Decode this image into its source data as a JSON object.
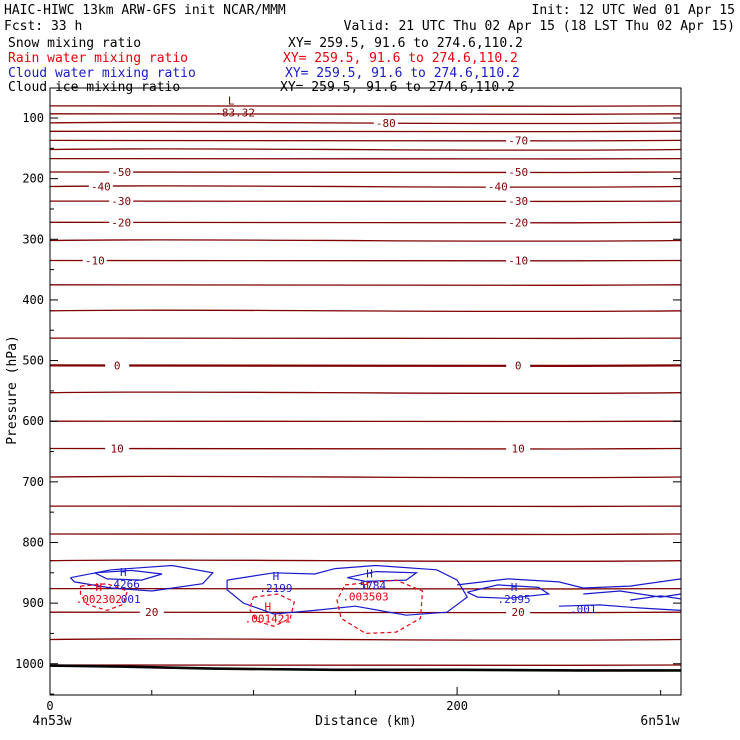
{
  "header": {
    "left_line1": "HAIC-HIWC 13km ARW-GFS init    NCAR/MMM",
    "left_line2": "Fcst:    33 h",
    "right_line1": "Init: 12 UTC Wed 01 Apr 15",
    "right_line2": "Valid: 21 UTC Thu 02 Apr 15 (18 LST Thu 02 Apr 15)",
    "fields": [
      {
        "name": "Snow mixing ratio",
        "xy": "XY= 259.5, 91.6 to 274.6,110.2",
        "color": "#000000"
      },
      {
        "name": "Rain water mixing ratio",
        "xy": "XY= 259.5, 91.6 to 274.6,110.2",
        "color": "#e8000b"
      },
      {
        "name": "Cloud water mixing ratio",
        "xy": "XY= 259.5, 91.6 to 274.6,110.2",
        "color": "#1a1acc"
      },
      {
        "name": "Cloud ice mixing ratio",
        "xy": "XY= 259.5, 91.6 to 274.6,110.2",
        "color": "#000000"
      }
    ]
  },
  "chart_data": {
    "type": "line",
    "xlabel": "Distance (km)",
    "ylabel": "Pressure (hPa)",
    "xlim": [
      0,
      310
    ],
    "ylim": [
      1050,
      75
    ],
    "x_ticks": [
      0,
      200
    ],
    "x_minor_ticks": [
      50,
      100,
      150,
      250,
      300
    ],
    "y_ticks": [
      100,
      200,
      300,
      400,
      500,
      600,
      700,
      800,
      900,
      1000
    ],
    "endpoints": {
      "left": "4n53w",
      "right": "6n51w"
    },
    "colors": {
      "temperature": "#800000",
      "cloud_water": "#1a1acc",
      "rain": "#e8000b",
      "ground": "#000000"
    },
    "temperature_lines": [
      {
        "p": 80,
        "label": ""
      },
      {
        "p": 93,
        "label": ""
      },
      {
        "p": 108,
        "label": "-80"
      },
      {
        "p": 122,
        "label": ""
      },
      {
        "p": 137,
        "label": "-70"
      },
      {
        "p": 152,
        "label": ""
      },
      {
        "p": 167,
        "label": ""
      },
      {
        "p": 189,
        "label": "-50"
      },
      {
        "p": 213,
        "label": "-40"
      },
      {
        "p": 237,
        "label": "-30"
      },
      {
        "p": 272,
        "label": "-20"
      },
      {
        "p": 302,
        "label": ""
      },
      {
        "p": 335,
        "label": "-10"
      },
      {
        "p": 375,
        "label": ""
      },
      {
        "p": 418,
        "label": ""
      },
      {
        "p": 463,
        "label": ""
      },
      {
        "p": 508,
        "label": "0"
      },
      {
        "p": 553,
        "label": ""
      },
      {
        "p": 600,
        "label": ""
      },
      {
        "p": 645,
        "label": "10"
      },
      {
        "p": 692,
        "label": ""
      },
      {
        "p": 740,
        "label": ""
      },
      {
        "p": 786,
        "label": ""
      },
      {
        "p": 830,
        "label": ""
      },
      {
        "p": 876,
        "label": ""
      },
      {
        "p": 915,
        "label": "20"
      },
      {
        "p": 960,
        "label": ""
      },
      {
        "p": 1002,
        "label": ""
      }
    ],
    "label_positions": {
      "-80": [
        165
      ],
      "-70": [
        230
      ],
      "-50": [
        35,
        230
      ],
      "-40": [
        25,
        220
      ],
      "-30": [
        35,
        230
      ],
      "-20": [
        35,
        230
      ],
      "-10": [
        22,
        230
      ],
      "0": [
        33,
        230
      ],
      "10": [
        33,
        230
      ],
      "20": [
        50,
        230
      ]
    },
    "low_center": {
      "symbol": "L",
      "x": 89,
      "p": 78,
      "value": "-83.32"
    },
    "cloud_water_maxima": [
      {
        "symbol": "H",
        "x": 36,
        "p": 855,
        "value": ".4266"
      },
      {
        "symbol": "H",
        "x": 111,
        "p": 862,
        "value": ".2199"
      },
      {
        "symbol": "H",
        "x": 157,
        "p": 858,
        "value": ".5784"
      },
      {
        "symbol": "H",
        "x": 228,
        "p": 880,
        "value": ".2995"
      }
    ],
    "cloud_water_contour_labels": [
      {
        "x": 38,
        "p": 893,
        "value": ".001"
      },
      {
        "x": 262,
        "p": 910,
        "value": ".001"
      }
    ],
    "rain_maxima": [
      {
        "symbol": "H",
        "x": 24,
        "p": 880,
        "value": ".002302"
      },
      {
        "symbol": "H",
        "x": 107,
        "p": 912,
        "value": ".001421"
      },
      {
        "symbol": "H",
        "x": 155,
        "p": 876,
        "value": ".003503"
      }
    ],
    "cloud_water_contours": [
      [
        [
          10,
          858
        ],
        [
          30,
          845
        ],
        [
          60,
          838
        ],
        [
          80,
          850
        ],
        [
          75,
          868
        ],
        [
          50,
          880
        ],
        [
          30,
          875
        ],
        [
          12,
          865
        ],
        [
          10,
          858
        ]
      ],
      [
        [
          22,
          850
        ],
        [
          40,
          846
        ],
        [
          55,
          852
        ],
        [
          45,
          862
        ],
        [
          28,
          860
        ],
        [
          22,
          850
        ]
      ],
      [
        [
          87,
          862
        ],
        [
          110,
          850
        ],
        [
          130,
          852
        ],
        [
          140,
          843
        ],
        [
          160,
          838
        ],
        [
          190,
          845
        ],
        [
          200,
          862
        ],
        [
          205,
          890
        ],
        [
          195,
          915
        ],
        [
          175,
          920
        ],
        [
          150,
          905
        ],
        [
          130,
          912
        ],
        [
          110,
          918
        ],
        [
          95,
          900
        ],
        [
          87,
          878
        ],
        [
          87,
          862
        ]
      ],
      [
        [
          146,
          858
        ],
        [
          160,
          848
        ],
        [
          180,
          850
        ],
        [
          175,
          862
        ],
        [
          155,
          864
        ],
        [
          146,
          858
        ]
      ],
      [
        [
          200,
          870
        ],
        [
          225,
          860
        ],
        [
          250,
          865
        ],
        [
          262,
          875
        ],
        [
          285,
          872
        ],
        [
          310,
          860
        ]
      ],
      [
        [
          205,
          882
        ],
        [
          220,
          870
        ],
        [
          240,
          874
        ],
        [
          245,
          885
        ],
        [
          225,
          892
        ],
        [
          210,
          890
        ],
        [
          205,
          882
        ]
      ],
      [
        [
          262,
          885
        ],
        [
          280,
          880
        ],
        [
          300,
          890
        ],
        [
          310,
          885
        ]
      ],
      [
        [
          285,
          895
        ],
        [
          300,
          888
        ],
        [
          310,
          893
        ]
      ],
      [
        [
          250,
          905
        ],
        [
          270,
          903
        ],
        [
          290,
          908
        ],
        [
          310,
          912
        ]
      ]
    ],
    "rain_contours": [
      [
        [
          15,
          872
        ],
        [
          28,
          868
        ],
        [
          38,
          880
        ],
        [
          36,
          902
        ],
        [
          28,
          912
        ],
        [
          18,
          902
        ],
        [
          15,
          885
        ],
        [
          15,
          872
        ]
      ],
      [
        [
          100,
          890
        ],
        [
          112,
          885
        ],
        [
          120,
          898
        ],
        [
          118,
          925
        ],
        [
          110,
          938
        ],
        [
          102,
          930
        ],
        [
          98,
          910
        ],
        [
          100,
          890
        ]
      ],
      [
        [
          145,
          870
        ],
        [
          170,
          862
        ],
        [
          183,
          880
        ],
        [
          182,
          925
        ],
        [
          170,
          948
        ],
        [
          155,
          950
        ],
        [
          143,
          925
        ],
        [
          141,
          895
        ],
        [
          145,
          870
        ]
      ]
    ],
    "ground": [
      [
        0,
        1003
      ],
      [
        40,
        1005
      ],
      [
        80,
        1008
      ],
      [
        140,
        1010
      ],
      [
        200,
        1010
      ],
      [
        260,
        1011
      ],
      [
        310,
        1011
      ]
    ]
  }
}
